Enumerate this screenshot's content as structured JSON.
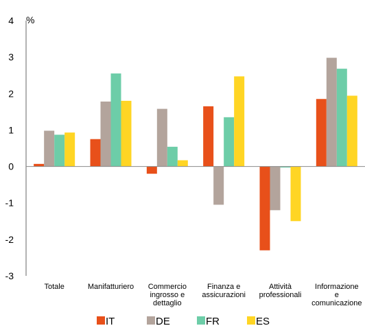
{
  "chart_data": {
    "type": "bar",
    "unit_label": "%",
    "ylim": [
      -3,
      4
    ],
    "yticks": [
      "4",
      "3",
      "2",
      "1",
      "0",
      "-1",
      "-2",
      "-3"
    ],
    "grid": false,
    "legend_position": "bottom",
    "categories": [
      [
        "Totale"
      ],
      [
        "Manifatturiero"
      ],
      [
        "Commercio",
        "ingrosso e",
        "dettaglio"
      ],
      [
        "Finanza e",
        "assicurazioni"
      ],
      [
        "Attività",
        "professionali"
      ],
      [
        "Informazione",
        "e",
        "comunicazione"
      ]
    ],
    "series": [
      {
        "name": "IT",
        "color": "#E8501A",
        "values": [
          0.07,
          0.75,
          -0.2,
          1.65,
          -2.3,
          1.85
        ]
      },
      {
        "name": "DE",
        "color": "#B3A49C",
        "values": [
          0.98,
          1.78,
          1.58,
          -1.05,
          -1.2,
          2.98
        ]
      },
      {
        "name": "FR",
        "color": "#6DCDA8",
        "values": [
          0.87,
          2.55,
          0.54,
          1.35,
          -0.03,
          2.68
        ]
      },
      {
        "name": "ES",
        "color": "#FFD524",
        "values": [
          0.93,
          1.8,
          0.17,
          2.47,
          -1.5,
          1.94
        ]
      }
    ]
  }
}
